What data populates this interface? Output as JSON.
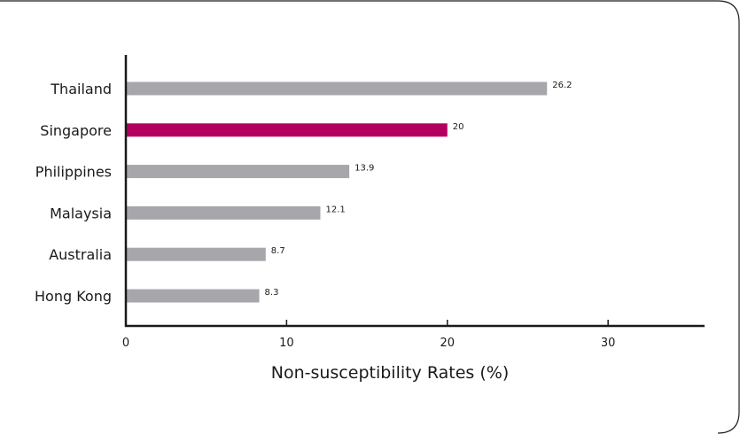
{
  "chart_data": {
    "type": "bar",
    "orientation": "horizontal",
    "categories": [
      "Thailand",
      "Singapore",
      "Philippines",
      "Malaysia",
      "Australia",
      "Hong Kong"
    ],
    "values": [
      26.2,
      20,
      13.9,
      12.1,
      8.7,
      8.3
    ],
    "value_labels": [
      "26.2",
      "20",
      "13.9",
      "12.1",
      "8.7",
      "8.3"
    ],
    "highlight_category": "Singapore",
    "colors": {
      "default": "#a7a6ab",
      "highlight": "#b3005e",
      "axis": "#1a1a1a",
      "frame": "#1a1a1a"
    },
    "xlabel": "Non-susceptibility Rates (%)",
    "xlim": [
      0,
      36
    ],
    "xticks": [
      0,
      10,
      20,
      30
    ],
    "xtick_labels": [
      "0",
      "10",
      "20",
      "30"
    ],
    "grid": false,
    "legend": "none"
  }
}
